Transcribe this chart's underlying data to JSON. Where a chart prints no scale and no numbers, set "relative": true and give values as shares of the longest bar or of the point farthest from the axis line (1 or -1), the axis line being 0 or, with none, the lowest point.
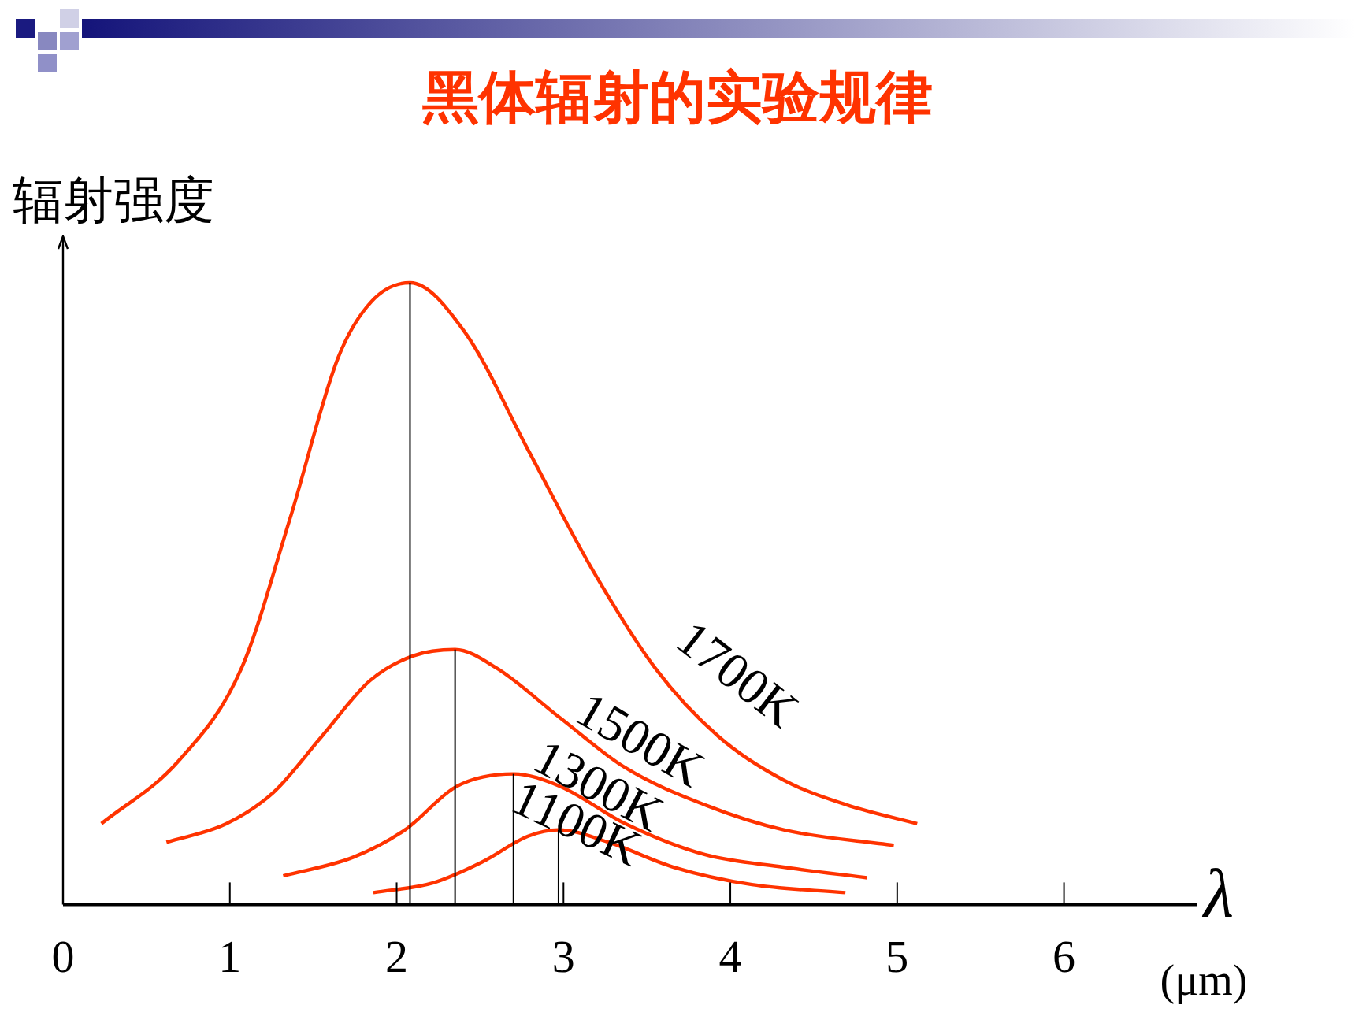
{
  "chart_data": {
    "type": "line",
    "title": "黑体辐射的实验规律",
    "ylabel": "辐射强度",
    "xlabel": "λ",
    "annotations": [
      "(μm)"
    ],
    "relative": true,
    "xlim": [
      0,
      6.8
    ],
    "xticks": [
      0,
      1,
      2,
      3,
      4,
      5,
      6
    ],
    "grid": false,
    "legend": false,
    "marker": "none",
    "line_style": "solid",
    "series": [
      {
        "name": "1700K",
        "color": "#ff3300",
        "x": [
          0.23,
          0.69,
          1.07,
          1.36,
          1.65,
          1.85,
          2.08,
          2.41,
          2.79,
          3.17,
          3.55,
          3.93,
          4.32,
          4.7,
          5.12
        ],
        "values": [
          0.13,
          0.23,
          0.38,
          0.62,
          0.88,
          0.97,
          1.0,
          0.92,
          0.73,
          0.54,
          0.38,
          0.27,
          0.2,
          0.16,
          0.13
        ]
      },
      {
        "name": "1500K",
        "color": "#ff3300",
        "x": [
          0.62,
          0.98,
          1.26,
          1.55,
          1.84,
          2.1,
          2.35,
          2.6,
          2.98,
          3.37,
          3.85,
          4.32,
          4.98
        ],
        "values": [
          0.1,
          0.13,
          0.18,
          0.27,
          0.36,
          0.4,
          0.41,
          0.38,
          0.3,
          0.22,
          0.16,
          0.12,
          0.095
        ]
      },
      {
        "name": "1300K",
        "color": "#ff3300",
        "x": [
          1.32,
          1.74,
          2.05,
          2.36,
          2.7,
          2.98,
          3.37,
          3.85,
          4.32,
          4.82
        ],
        "values": [
          0.046,
          0.076,
          0.12,
          0.19,
          0.21,
          0.19,
          0.13,
          0.08,
          0.06,
          0.043
        ]
      },
      {
        "name": "1100K",
        "color": "#ff3300",
        "x": [
          1.86,
          2.22,
          2.51,
          2.79,
          2.97,
          3.27,
          3.66,
          4.13,
          4.69
        ],
        "values": [
          0.019,
          0.035,
          0.068,
          0.11,
          0.12,
          0.1,
          0.06,
          0.032,
          0.019
        ]
      }
    ],
    "ref_lines": [
      {
        "axis": "x",
        "value": 2.08,
        "color": "#000000"
      },
      {
        "axis": "x",
        "value": 2.35,
        "color": "#000000"
      },
      {
        "axis": "x",
        "value": 2.7,
        "color": "#000000"
      },
      {
        "axis": "x",
        "value": 2.97,
        "color": "#000000"
      }
    ]
  }
}
